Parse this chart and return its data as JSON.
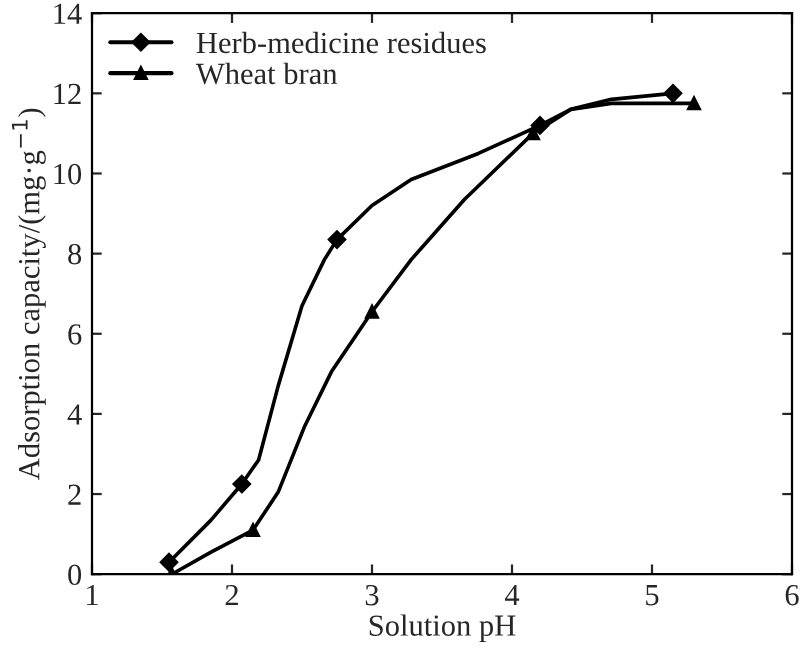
{
  "chart_data": {
    "type": "line",
    "xlabel": "Solution pH",
    "ylabel": "Adsorption capacity/(mg·g$^{−1}$)",
    "xlim": [
      1,
      6
    ],
    "xticks": [
      1,
      2,
      3,
      4,
      5,
      6
    ],
    "ylim": [
      0,
      14
    ],
    "yticks": [
      0,
      2,
      4,
      6,
      8,
      10,
      12,
      14
    ],
    "grid": false,
    "legend": "top left",
    "line_style": "solid",
    "series": [
      {
        "name": "Herb-medicine residues",
        "color": "#000000",
        "marker": "none",
        "x": [
          1.55,
          1.85,
          2.07,
          2.19,
          2.33,
          2.5,
          2.66,
          2.75,
          3.0,
          3.28,
          3.76,
          4.2,
          4.42,
          4.71,
          5.15
        ],
        "values": [
          0.3,
          1.35,
          2.25,
          2.85,
          4.7,
          6.7,
          7.85,
          8.35,
          9.2,
          9.85,
          10.5,
          11.2,
          11.6,
          11.85,
          12.0
        ]
      },
      {
        "type": "scatter",
        "color": "#000000",
        "marker": "diamond",
        "x": [
          1.55,
          2.07,
          2.75,
          4.2,
          5.15
        ],
        "values": [
          0.3,
          2.25,
          8.35,
          11.2,
          12.0
        ]
      },
      {
        "name": "Wheat bran",
        "color": "#000000",
        "marker": "none",
        "x": [
          1.57,
          1.85,
          2.15,
          2.33,
          2.52,
          2.71,
          3.0,
          3.28,
          3.66,
          4.15,
          4.42,
          4.71,
          5.3
        ],
        "values": [
          0.0,
          0.55,
          1.1,
          2.05,
          3.7,
          5.05,
          6.55,
          7.85,
          9.35,
          11.0,
          11.6,
          11.75,
          11.75
        ]
      },
      {
        "type": "scatter",
        "color": "#000000",
        "marker": "triangle",
        "x": [
          1.57,
          2.15,
          3.0,
          4.15,
          5.3
        ],
        "values": [
          0.0,
          1.1,
          6.55,
          11.0,
          11.75
        ]
      }
    ]
  }
}
